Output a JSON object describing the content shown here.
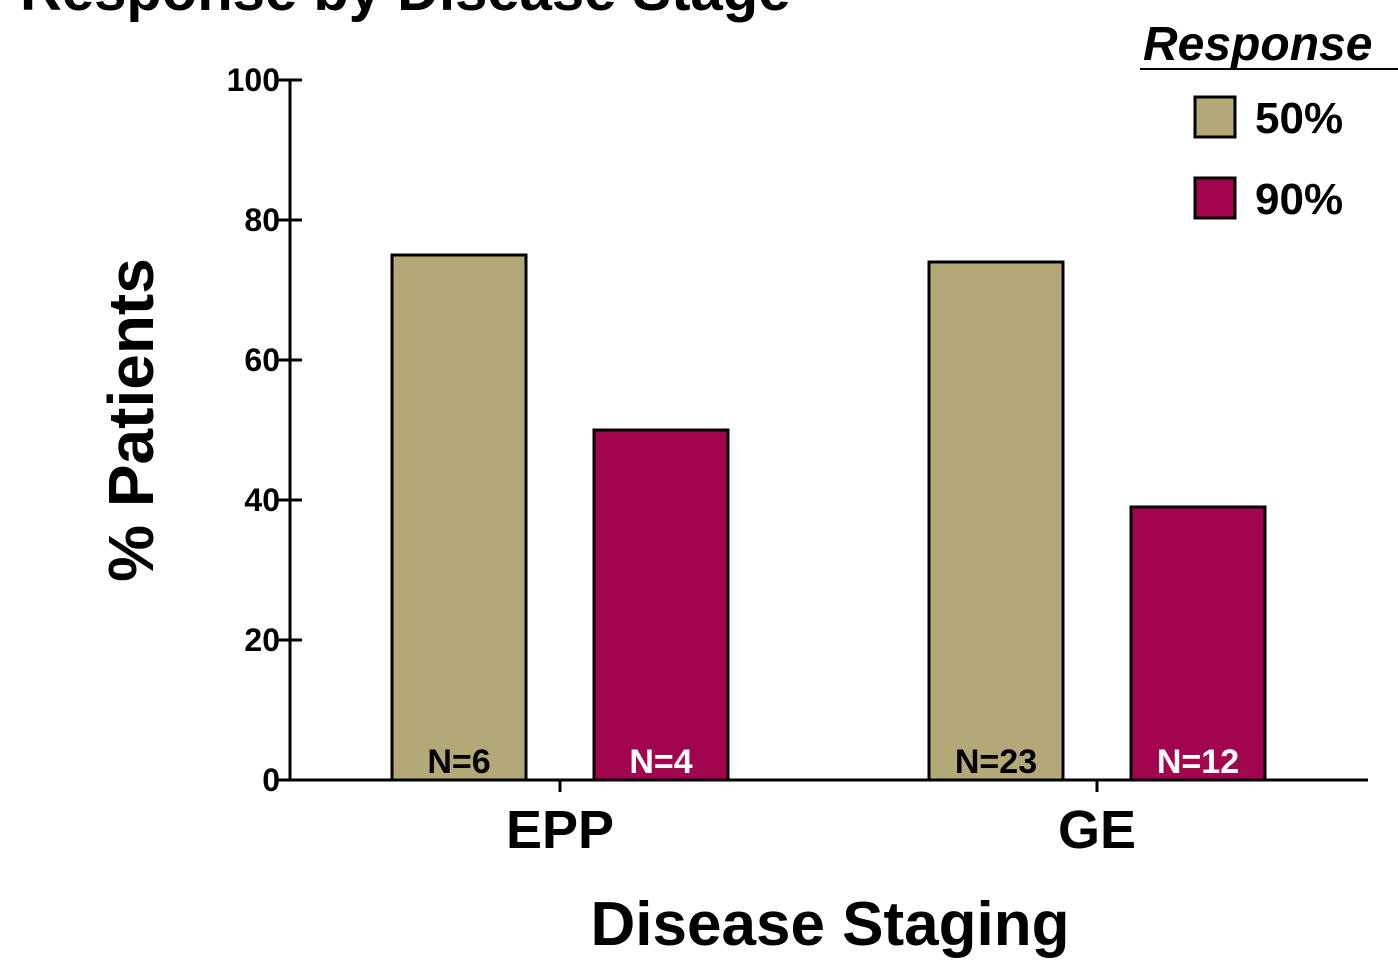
{
  "chart_data": {
    "type": "bar",
    "title": "Response by Disease Stage",
    "xlabel": "Disease Staging",
    "ylabel": "% Patients",
    "ylim": [
      0,
      100
    ],
    "yticks": [
      0,
      20,
      40,
      60,
      80,
      100
    ],
    "categories": [
      "EPP",
      "GE"
    ],
    "series": [
      {
        "name": "50%",
        "color": "#b3a877",
        "values": [
          75,
          74
        ],
        "labels": [
          "N=6",
          "N=23"
        ]
      },
      {
        "name": "90%",
        "color": "#a0054e",
        "values": [
          50,
          39
        ],
        "labels": [
          "N=4",
          "N=12"
        ]
      }
    ],
    "legend": {
      "title": "Response",
      "placement": "top-right"
    },
    "grid": false
  }
}
